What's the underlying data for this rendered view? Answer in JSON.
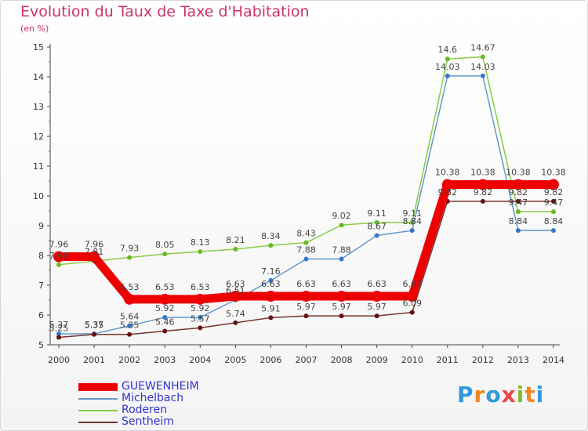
{
  "title": "Evolution du Taux de Taxe d'Habitation",
  "subtitle": "(en %)",
  "brand": [
    "P",
    "r",
    "o",
    "x",
    "i",
    "t",
    "i"
  ],
  "chart_data": {
    "type": "line",
    "title": "Evolution du Taux de Taxe d'Habitation",
    "ylabel": "(en %)",
    "x": [
      "2000",
      "2001",
      "2002",
      "2003",
      "2004",
      "2005",
      "2006",
      "2007",
      "2008",
      "2009",
      "2010",
      "2011",
      "2012",
      "2013",
      "2014"
    ],
    "ylim": [
      5,
      15
    ],
    "yticks": [
      5,
      6,
      7,
      8,
      9,
      10,
      11,
      12,
      13,
      14,
      15
    ],
    "grid": false,
    "legend_position": "bottom-left",
    "series": [
      {
        "name": "GUEWENHEIM",
        "color": "#ee0000",
        "values": [
          7.96,
          7.96,
          6.53,
          6.53,
          6.53,
          6.63,
          6.63,
          6.63,
          6.63,
          6.63,
          6.63,
          10.38,
          10.38,
          10.38,
          10.38
        ],
        "labels": [
          "7.96",
          "7.96",
          "6.53",
          "6.53",
          "6.53",
          "6.63",
          "6.63",
          "6.63",
          "6.63",
          "6.63",
          "6.63",
          "10.38",
          "10.38",
          "10.38",
          "10.38"
        ]
      },
      {
        "name": "Michelbach",
        "color": "#6699cc",
        "values": [
          5.37,
          5.37,
          5.64,
          5.92,
          5.92,
          6.51,
          7.16,
          7.88,
          7.88,
          8.67,
          8.84,
          14.03,
          14.03,
          8.84,
          8.84
        ],
        "labels": [
          "5.37",
          "5.37",
          "5.64",
          "5.92",
          "5.92",
          "6.51",
          "7.16",
          "7.88",
          "7.88",
          "8.67",
          "8.84",
          "14.03",
          "14.03",
          "8.84",
          "8.84"
        ]
      },
      {
        "name": "Roderen",
        "color": "#88cc44",
        "values": [
          7.69,
          7.81,
          7.93,
          8.05,
          8.13,
          8.21,
          8.34,
          8.43,
          9.02,
          9.11,
          9.11,
          14.6,
          14.67,
          9.47,
          9.47
        ],
        "labels": [
          "7.69",
          "7.81",
          "7.93",
          "8.05",
          "8.13",
          "8.21",
          "8.34",
          "8.43",
          "9.02",
          "9.11",
          "9.11",
          "14.6",
          "14.67",
          "9.47",
          "9.47"
        ]
      },
      {
        "name": "Sentheim",
        "color": "#773333",
        "values": [
          5.25,
          5.35,
          5.35,
          5.46,
          5.57,
          5.74,
          5.91,
          5.97,
          5.97,
          5.97,
          6.09,
          9.82,
          9.82,
          9.82,
          9.82
        ],
        "labels": [
          "5.25",
          "5.35",
          "5.35",
          "5.46",
          "5.57",
          "5.74",
          "5.91",
          "5.97",
          "5.97",
          "5.97",
          "6.09",
          "9.82",
          "9.82",
          "9.82",
          "9.82"
        ]
      }
    ]
  }
}
